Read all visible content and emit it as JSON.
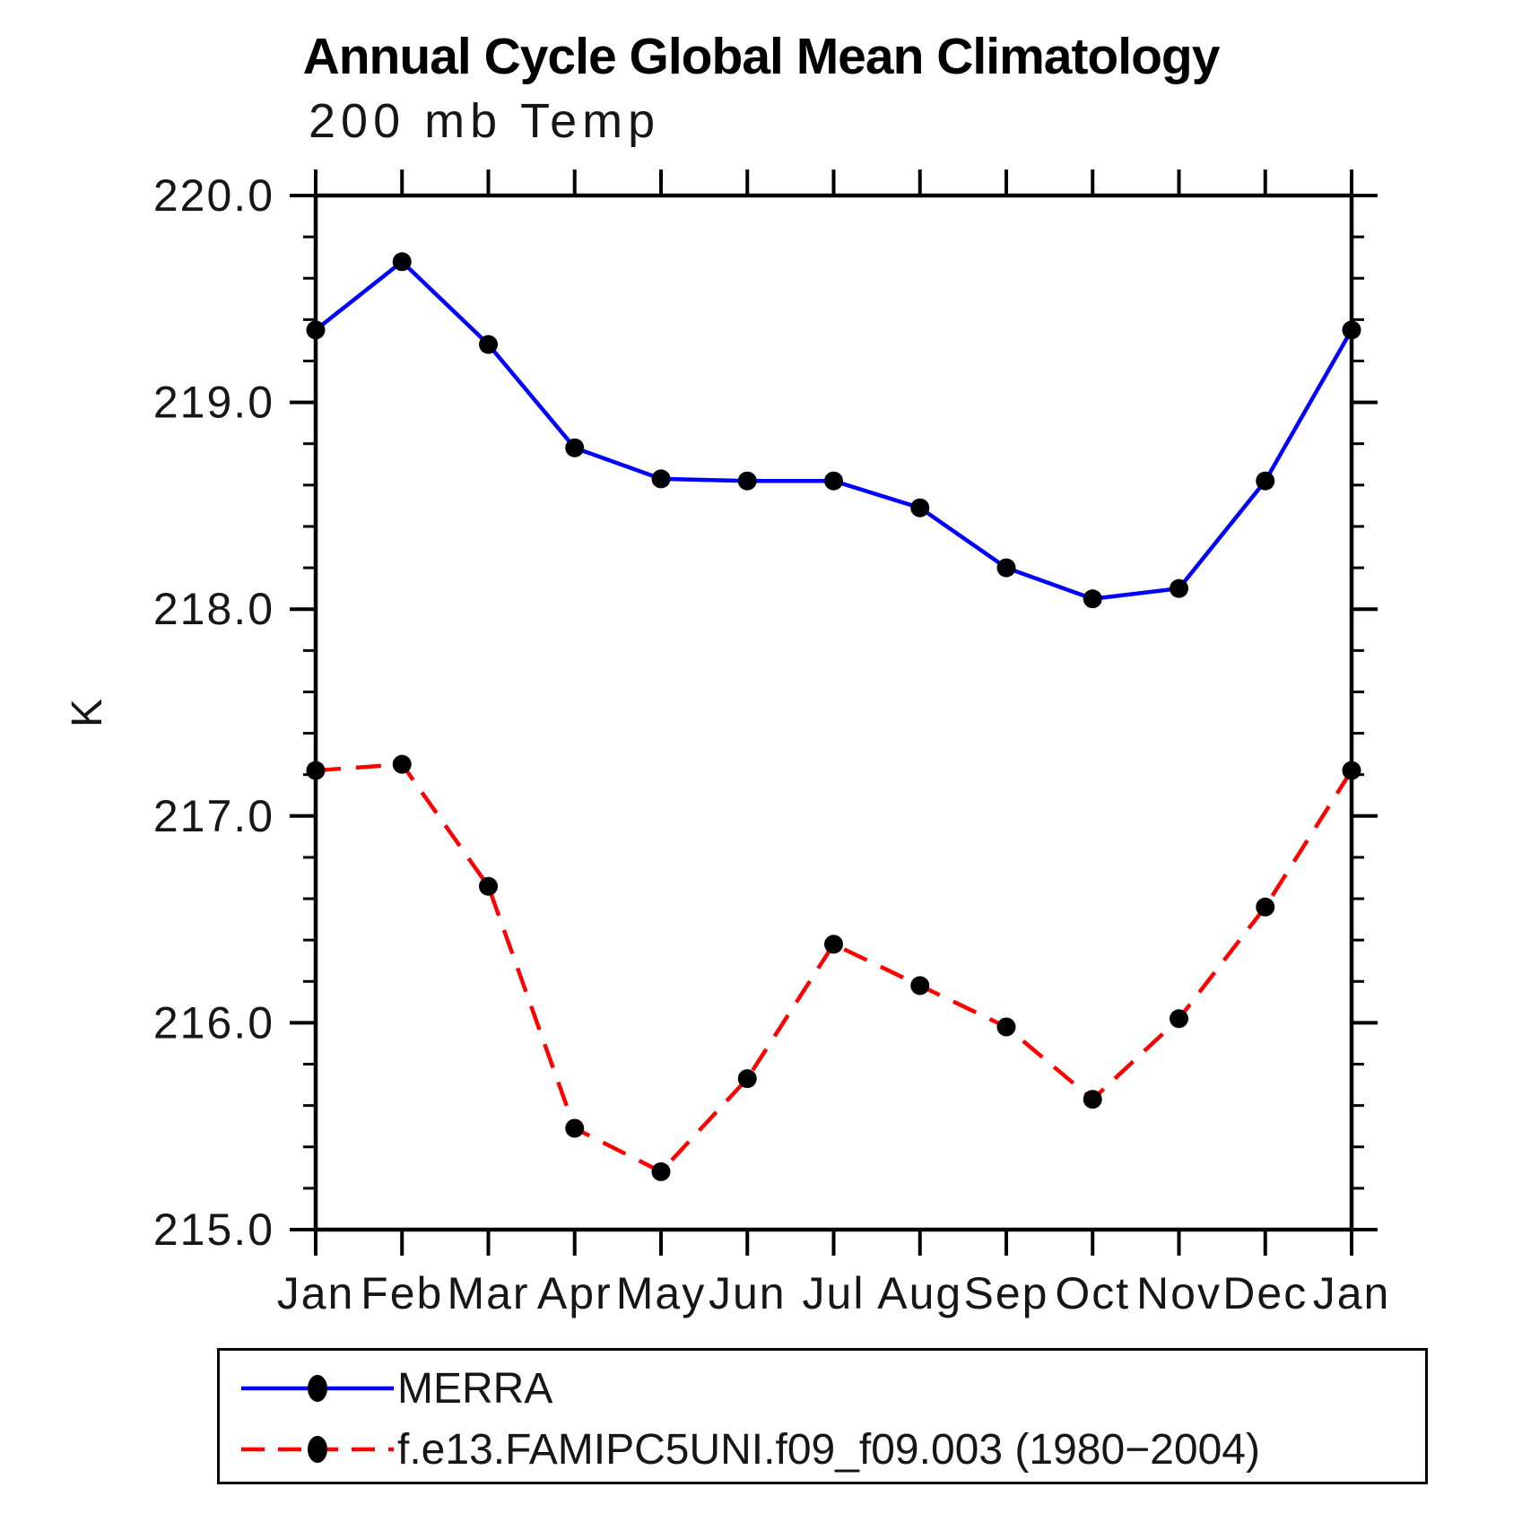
{
  "title": "Annual Cycle Global Mean Climatology",
  "subtitle": "200 mb Temp",
  "colors": {
    "merra_line": "#0000ff",
    "model_line": "#ff0000",
    "marker": "#000000",
    "axis": "#000000"
  },
  "chart_data": {
    "type": "line",
    "title": "Annual Cycle Global Mean Climatology",
    "subtitle": "200 mb Temp",
    "ylabel": "K",
    "xlabel": "",
    "categories": [
      "Jan",
      "Feb",
      "Mar",
      "Apr",
      "May",
      "Jun",
      "Jul",
      "Aug",
      "Sep",
      "Oct",
      "Nov",
      "Dec",
      "Jan"
    ],
    "ylim": [
      215.0,
      220.0
    ],
    "yticks": [
      215.0,
      216.0,
      217.0,
      218.0,
      219.0,
      220.0
    ],
    "minor_tick_interval": 0.2,
    "grid": false,
    "legend_position": "bottom",
    "series": [
      {
        "name": "MERRA",
        "color": "#0000ff",
        "line_style": "solid",
        "marker": "filled-circle",
        "marker_color": "#000000",
        "values": [
          219.35,
          219.68,
          219.28,
          218.78,
          218.63,
          218.62,
          218.62,
          218.49,
          218.2,
          218.05,
          218.1,
          218.62,
          219.35
        ]
      },
      {
        "name": "f.e13.FAMIPC5UNI.f09_f09.003 (1980−2004)",
        "color": "#ff0000",
        "line_style": "dashed",
        "marker": "filled-circle",
        "marker_color": "#000000",
        "values": [
          217.22,
          217.25,
          216.66,
          215.49,
          215.28,
          215.73,
          216.38,
          216.18,
          215.98,
          215.63,
          216.02,
          216.56,
          217.22
        ]
      }
    ]
  }
}
